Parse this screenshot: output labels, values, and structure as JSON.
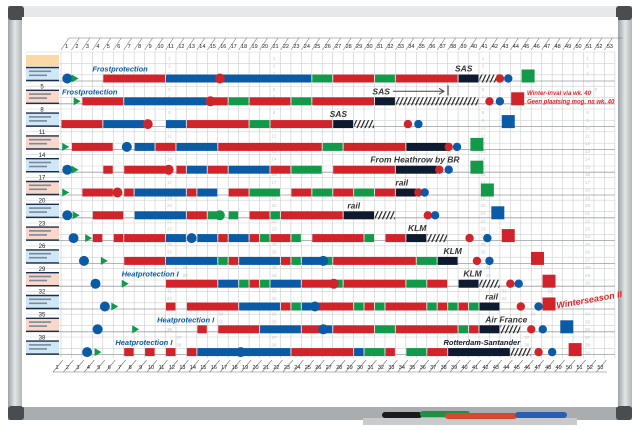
{
  "board": {
    "weeks": 53,
    "colors": {
      "R": "#d1232a",
      "B": "#0a5aa6",
      "G": "#12994a",
      "K": "#0d1a30",
      "frame": "#c9ccce",
      "label_blue": "#cfe7f6",
      "label_salmon": "#f9d8cb",
      "label_header": "#fbd9a6",
      "note_red": "#e0262b",
      "text_blue": "#0a5aa6",
      "text_dark": "#333333"
    },
    "guide_number_columns": [
      11,
      21,
      41,
      51
    ],
    "guide_number_max": 39
  },
  "row_numbers": [
    "",
    "5",
    "8",
    "11",
    "14",
    "17",
    "20",
    "23",
    "26",
    "29",
    "32",
    "35",
    "38"
  ],
  "rows": [
    {
      "segments": [
        [
          5,
          10,
          "R"
        ],
        [
          11,
          15,
          "B"
        ],
        [
          16,
          24,
          "B"
        ],
        [
          25,
          26,
          "G"
        ],
        [
          27,
          30,
          "R"
        ],
        [
          31,
          32,
          "G"
        ],
        [
          33,
          38,
          "R"
        ],
        [
          39,
          40,
          "K"
        ],
        [
          41,
          42,
          "H"
        ]
      ],
      "markers": [
        [
          "circle",
          "B",
          1.1
        ],
        [
          "triangle",
          "G",
          1.8
        ],
        [
          "circle",
          "R",
          15.7
        ],
        [
          "dot",
          "R",
          42.5
        ],
        [
          "dot",
          "B",
          43.3
        ]
      ],
      "square": [
        "G",
        45.2
      ]
    },
    {
      "segments": [
        [
          3,
          6,
          "R"
        ],
        [
          7,
          14,
          "B"
        ],
        [
          15,
          16,
          "R"
        ],
        [
          17,
          18,
          "G"
        ],
        [
          19,
          22,
          "R"
        ],
        [
          23,
          24,
          "G"
        ],
        [
          25,
          30,
          "R"
        ],
        [
          31,
          32,
          "K"
        ],
        [
          33,
          40,
          "H"
        ]
      ],
      "markers": [
        [
          "triangle",
          "G",
          2.0
        ],
        [
          "circle",
          "R",
          14.8
        ],
        [
          "dot",
          "R",
          41.5
        ],
        [
          "dot",
          "B",
          42.5
        ]
      ],
      "square": [
        "R",
        44.2
      ]
    },
    {
      "segments": [
        [
          1,
          4,
          "R"
        ],
        [
          5,
          8,
          "B"
        ],
        [
          11,
          12,
          "B"
        ],
        [
          13,
          18,
          "R"
        ],
        [
          19,
          20,
          "G"
        ],
        [
          21,
          26,
          "R"
        ],
        [
          27,
          28,
          "K"
        ],
        [
          29,
          30,
          "H"
        ]
      ],
      "markers": [
        [
          "circle",
          "R",
          8.8
        ],
        [
          "dot",
          "R",
          33.7
        ],
        [
          "dot",
          "B",
          34.7
        ]
      ],
      "square": [
        "B",
        43.3
      ]
    },
    {
      "segments": [
        [
          2,
          5,
          "R"
        ],
        [
          8,
          9,
          "B"
        ],
        [
          10,
          11,
          "R"
        ],
        [
          12,
          15,
          "B"
        ],
        [
          16,
          25,
          "R"
        ],
        [
          26,
          27,
          "G"
        ],
        [
          28,
          33,
          "R"
        ],
        [
          34,
          37,
          "K"
        ]
      ],
      "markers": [
        [
          "triangle",
          "G",
          0.9
        ],
        [
          "circle",
          "B",
          6.8
        ],
        [
          "dot",
          "R",
          37.6
        ],
        [
          "dot",
          "B",
          38.4
        ]
      ],
      "square": [
        "G",
        40.3
      ]
    },
    {
      "segments": [
        [
          5,
          5,
          "R"
        ],
        [
          7,
          10,
          "R"
        ],
        [
          12,
          12,
          "R"
        ],
        [
          13,
          14,
          "B"
        ],
        [
          15,
          16,
          "R"
        ],
        [
          17,
          20,
          "B"
        ],
        [
          21,
          22,
          "R"
        ],
        [
          23,
          25,
          "G"
        ],
        [
          27,
          32,
          "R"
        ],
        [
          33,
          36,
          "K"
        ]
      ],
      "markers": [
        [
          "circle",
          "B",
          1.1
        ],
        [
          "triangle",
          "G",
          1.8
        ],
        [
          "circle",
          "R",
          10.8
        ],
        [
          "dot",
          "R",
          36.7
        ],
        [
          "dot",
          "B",
          37.6
        ]
      ],
      "square": [
        "G",
        40.3
      ]
    },
    {
      "segments": [
        [
          3,
          5,
          "R"
        ],
        [
          7,
          7,
          "R"
        ],
        [
          8,
          12,
          "B"
        ],
        [
          13,
          13,
          "R"
        ],
        [
          14,
          15,
          "B"
        ],
        [
          17,
          18,
          "R"
        ],
        [
          19,
          21,
          "G"
        ],
        [
          23,
          24,
          "R"
        ],
        [
          25,
          26,
          "G"
        ],
        [
          27,
          28,
          "R"
        ],
        [
          29,
          30,
          "G"
        ],
        [
          31,
          32,
          "R"
        ],
        [
          33,
          34,
          "K"
        ]
      ],
      "markers": [
        [
          "triangle",
          "G",
          0.9
        ],
        [
          "circle",
          "R",
          5.9
        ],
        [
          "dot",
          "R",
          34.7
        ],
        [
          "dot",
          "B",
          35.3
        ]
      ],
      "square": [
        "G",
        41.3
      ]
    },
    {
      "segments": [
        [
          4,
          6,
          "R"
        ],
        [
          8,
          12,
          "B"
        ],
        [
          13,
          14,
          "R"
        ],
        [
          15,
          15,
          "G"
        ],
        [
          17,
          17,
          "G"
        ],
        [
          19,
          20,
          "R"
        ],
        [
          21,
          21,
          "G"
        ],
        [
          22,
          27,
          "R"
        ],
        [
          28,
          30,
          "K"
        ],
        [
          31,
          32,
          "H"
        ]
      ],
      "markers": [
        [
          "circle",
          "B",
          1.1
        ],
        [
          "triangle",
          "G",
          1.9
        ],
        [
          "circle",
          "G",
          15.7
        ],
        [
          "dot",
          "R",
          35.6
        ],
        [
          "dot",
          "B",
          36.3
        ]
      ],
      "square": [
        "B",
        42.3
      ]
    },
    {
      "segments": [
        [
          4,
          4,
          "R"
        ],
        [
          6,
          6,
          "R"
        ],
        [
          7,
          10,
          "R"
        ],
        [
          11,
          12,
          "B"
        ],
        [
          14,
          15,
          "B"
        ],
        [
          16,
          16,
          "R"
        ],
        [
          17,
          18,
          "B"
        ],
        [
          19,
          19,
          "R"
        ],
        [
          20,
          20,
          "G"
        ],
        [
          21,
          22,
          "R"
        ],
        [
          23,
          23,
          "G"
        ],
        [
          25,
          29,
          "R"
        ],
        [
          30,
          30,
          "G"
        ],
        [
          32,
          33,
          "R"
        ],
        [
          34,
          35,
          "K"
        ],
        [
          36,
          37,
          "H"
        ]
      ],
      "markers": [
        [
          "circle",
          "B",
          1.7
        ],
        [
          "triangle",
          "G",
          3.1
        ],
        [
          "circle",
          "B",
          13
        ],
        [
          "dot",
          "R",
          39.6
        ],
        [
          "dot",
          "B",
          41.3
        ]
      ],
      "square": [
        "R",
        43.3
      ]
    },
    {
      "segments": [
        [
          7,
          10,
          "R"
        ],
        [
          11,
          15,
          "B"
        ],
        [
          16,
          16,
          "G"
        ],
        [
          17,
          17,
          "R"
        ],
        [
          18,
          21,
          "B"
        ],
        [
          22,
          22,
          "R"
        ],
        [
          23,
          23,
          "G"
        ],
        [
          24,
          25,
          "B"
        ],
        [
          26,
          26,
          "G"
        ],
        [
          27,
          34,
          "R"
        ],
        [
          35,
          36,
          "G"
        ],
        [
          37,
          38,
          "K"
        ]
      ],
      "markers": [
        [
          "circle",
          "B",
          2.7
        ],
        [
          "triangle",
          "G",
          4.6
        ],
        [
          "circle",
          "B",
          25.6
        ],
        [
          "dot",
          "R",
          40.3
        ],
        [
          "dot",
          "B",
          41.5
        ]
      ],
      "square": [
        "R",
        46.1
      ]
    },
    {
      "segments": [
        [
          11,
          15,
          "R"
        ],
        [
          16,
          17,
          "B"
        ],
        [
          18,
          18,
          "G"
        ],
        [
          19,
          19,
          "R"
        ],
        [
          20,
          20,
          "G"
        ],
        [
          21,
          23,
          "B"
        ],
        [
          24,
          26,
          "R"
        ],
        [
          27,
          27,
          "G"
        ],
        [
          28,
          33,
          "R"
        ],
        [
          34,
          35,
          "G"
        ],
        [
          36,
          37,
          "R"
        ],
        [
          39,
          40,
          "K"
        ],
        [
          41,
          42,
          "H"
        ]
      ],
      "markers": [
        [
          "circle",
          "B",
          3.8
        ],
        [
          "triangle",
          "G",
          6.6
        ],
        [
          "circle",
          "R",
          26.6
        ],
        [
          "dot",
          "R",
          43.5
        ],
        [
          "dot",
          "B",
          44.3
        ]
      ],
      "square": [
        "R",
        47.2
      ]
    },
    {
      "segments": [
        [
          11,
          11,
          "R"
        ],
        [
          13,
          17,
          "R"
        ],
        [
          18,
          21,
          "B"
        ],
        [
          22,
          22,
          "R"
        ],
        [
          23,
          23,
          "G"
        ],
        [
          24,
          24,
          "B"
        ],
        [
          25,
          28,
          "R"
        ],
        [
          29,
          29,
          "G"
        ],
        [
          30,
          30,
          "R"
        ],
        [
          31,
          31,
          "G"
        ],
        [
          32,
          35,
          "R"
        ],
        [
          36,
          36,
          "G"
        ],
        [
          37,
          37,
          "R"
        ],
        [
          38,
          38,
          "G"
        ],
        [
          39,
          39,
          "R"
        ],
        [
          40,
          40,
          "G"
        ],
        [
          41,
          42,
          "K"
        ]
      ],
      "markers": [
        [
          "circle",
          "B",
          4.7
        ],
        [
          "triangle",
          "G",
          5.6
        ],
        [
          "circle",
          "B",
          24.8
        ],
        [
          "dot",
          "R",
          44.5
        ],
        [
          "dot",
          "B",
          46.2
        ]
      ],
      "square": [
        "R",
        47.2
      ]
    },
    {
      "segments": [
        [
          14,
          14,
          "R"
        ],
        [
          16,
          19,
          "R"
        ],
        [
          20,
          23,
          "B"
        ],
        [
          24,
          25,
          "R"
        ],
        [
          26,
          26,
          "B"
        ],
        [
          27,
          30,
          "R"
        ],
        [
          31,
          32,
          "G"
        ],
        [
          33,
          38,
          "R"
        ],
        [
          39,
          39,
          "G"
        ],
        [
          40,
          40,
          "R"
        ],
        [
          41,
          42,
          "K"
        ],
        [
          43,
          44,
          "H"
        ]
      ],
      "markers": [
        [
          "circle",
          "B",
          4.0
        ],
        [
          "triangle",
          "G",
          7.6
        ],
        [
          "circle",
          "B",
          25.6
        ],
        [
          "dot",
          "R",
          45.5
        ],
        [
          "dot",
          "B",
          46.6
        ]
      ],
      "square": [
        "B",
        48.9
      ]
    },
    {
      "segments": [
        [
          7,
          7,
          "R"
        ],
        [
          9,
          9,
          "R"
        ],
        [
          11,
          11,
          "R"
        ],
        [
          13,
          13,
          "R"
        ],
        [
          14,
          17,
          "B"
        ],
        [
          18,
          22,
          "B"
        ],
        [
          23,
          28,
          "R"
        ],
        [
          29,
          29,
          "B"
        ],
        [
          30,
          31,
          "G"
        ],
        [
          32,
          32,
          "R"
        ],
        [
          34,
          35,
          "G"
        ],
        [
          36,
          37,
          "R"
        ],
        [
          38,
          43,
          "K"
        ],
        [
          44,
          45,
          "H"
        ]
      ],
      "markers": [
        [
          "circle",
          "B",
          3
        ],
        [
          "triangle",
          "G",
          4
        ],
        [
          "circle",
          "B",
          17.7
        ],
        [
          "dot",
          "R",
          46.2
        ],
        [
          "dot",
          "B",
          47.5
        ]
      ],
      "square": [
        "R",
        49.7
      ]
    }
  ],
  "annotations": [
    {
      "text": "Frostprotection",
      "row": 0,
      "week": 4,
      "color": "B"
    },
    {
      "text": "SAS",
      "row": 0,
      "week": 38.7,
      "color": "T"
    },
    {
      "text": "Frostprotection",
      "row": 1,
      "week": 1.1,
      "color": "B"
    },
    {
      "text": "SAS",
      "row": 1,
      "week": 30.8,
      "color": "T"
    },
    {
      "text": "SAS",
      "row": 2,
      "week": 26.7,
      "color": "T"
    },
    {
      "text": "From Heathrow by BR",
      "row": 4,
      "week": 30.6,
      "color": "T"
    },
    {
      "text": "rail",
      "row": 5,
      "week": 33,
      "color": "T"
    },
    {
      "text": "rail",
      "row": 6,
      "week": 28.4,
      "color": "T"
    },
    {
      "text": "KLM",
      "row": 7,
      "week": 34.2,
      "color": "T"
    },
    {
      "text": "KLM",
      "row": 8,
      "week": 37.6,
      "color": "T"
    },
    {
      "text": "Heatprotection I",
      "row": 9,
      "week": 6.8,
      "color": "B"
    },
    {
      "text": "KLM",
      "row": 9,
      "week": 39.5,
      "color": "T"
    },
    {
      "text": "rail",
      "row": 10,
      "week": 41.6,
      "color": "T"
    },
    {
      "text": "Air France",
      "row": 11,
      "week": 41.6,
      "color": "T"
    },
    {
      "text": "Heatprotection I",
      "row": 11,
      "week": 10.2,
      "color": "B"
    },
    {
      "text": "Rotterdam-Santander",
      "row": 12,
      "week": 37.6,
      "color": "K"
    },
    {
      "text": "Heatprotection I",
      "row": 12,
      "week": 6.2,
      "color": "B"
    }
  ],
  "notes": {
    "winter_note_line1": "Winter-inval via wk. 40",
    "winter_note_line2": "Geen plaatsing mog. na wk. 40",
    "winterseason": "Winterseason II"
  },
  "markers_tray": [
    "black",
    "green",
    "red",
    "blue"
  ]
}
